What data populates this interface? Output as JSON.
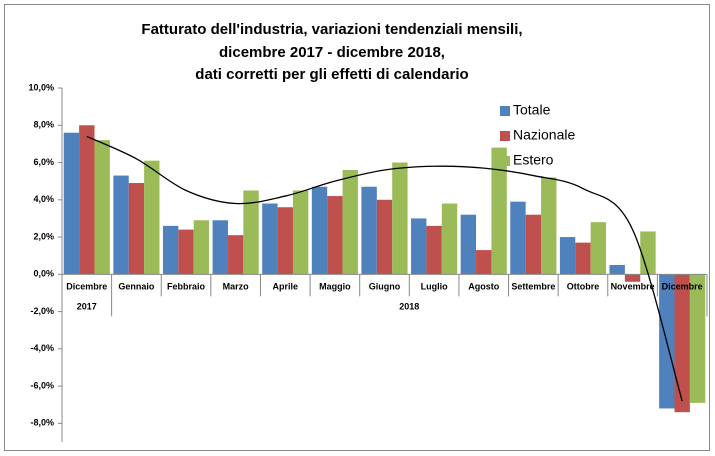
{
  "chart_data": {
    "type": "bar",
    "title": [
      "Fatturato dell'industria, variazioni tendenziali mensili,",
      "dicembre 2017 - dicembre 2018,",
      "dati corretti per gli effetti di calendario"
    ],
    "categories": [
      "Dicembre",
      "Gennaio",
      "Febbraio",
      "Marzo",
      "Aprile",
      "Maggio",
      "Giugno",
      "Luglio",
      "Agosto",
      "Settembre",
      "Ottobre",
      "Novembre",
      "Dicembre"
    ],
    "category_groups": [
      {
        "label": "2017",
        "count": 1
      },
      {
        "label": "2018",
        "count": 12
      }
    ],
    "series": [
      {
        "name": "Totale",
        "color": "#4f81bd",
        "values": [
          7.6,
          5.3,
          2.6,
          2.9,
          3.8,
          4.7,
          4.7,
          3.0,
          3.2,
          3.9,
          2.0,
          0.5,
          -7.2
        ]
      },
      {
        "name": "Nazionale",
        "color": "#c0504d",
        "values": [
          8.0,
          4.9,
          2.4,
          2.1,
          3.6,
          4.2,
          4.0,
          2.6,
          1.3,
          3.2,
          1.7,
          -0.4,
          -7.4
        ]
      },
      {
        "name": "Estero",
        "color": "#9bbb59",
        "values": [
          7.2,
          6.1,
          2.9,
          4.5,
          4.5,
          5.6,
          6.0,
          3.8,
          6.8,
          5.2,
          2.8,
          2.3,
          -6.9
        ]
      }
    ],
    "trendline": {
      "color": "#000000",
      "values": [
        7.4,
        6.2,
        4.5,
        3.8,
        4.2,
        5.0,
        5.6,
        5.8,
        5.7,
        5.3,
        4.6,
        2.4,
        -6.8
      ]
    },
    "ylim": [
      -9,
      10
    ],
    "yticks": [
      {
        "value": -8,
        "label": "-8,0%"
      },
      {
        "value": -6,
        "label": "-6,0%"
      },
      {
        "value": -4,
        "label": "-4,0%"
      },
      {
        "value": -2,
        "label": "-2,0%"
      },
      {
        "value": 0,
        "label": "0,0%"
      },
      {
        "value": 2,
        "label": "2,0%"
      },
      {
        "value": 4,
        "label": "4,0%"
      },
      {
        "value": 6,
        "label": "6,0%"
      },
      {
        "value": 8,
        "label": "8,0%"
      },
      {
        "value": 10,
        "label": "10,0%"
      }
    ],
    "legend": "top-right"
  }
}
